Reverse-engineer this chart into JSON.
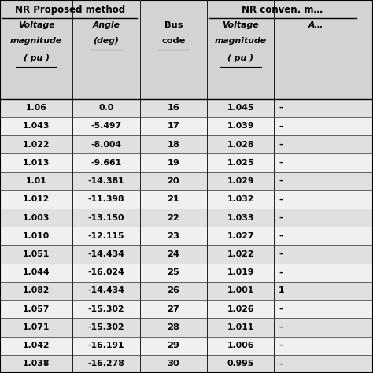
{
  "title_left": "NR Proposed method",
  "title_right": "NR conven. m…",
  "bus_codes": [
    16,
    17,
    18,
    19,
    20,
    21,
    22,
    23,
    24,
    25,
    26,
    27,
    28,
    29,
    30
  ],
  "nr_voltage": [
    "1.06",
    "1.043",
    "1.022",
    "1.013",
    "1.01",
    "1.012",
    "1.003",
    "1.010",
    "1.051",
    "1.044",
    "1.082",
    "1.057",
    "1.071",
    "1.042",
    "1.038"
  ],
  "nr_angle": [
    "0.0",
    "-5.497",
    "-8.004",
    "-9.661",
    "-14.381",
    "-11.398",
    "-13.150",
    "-12.115",
    "-14.434",
    "-16.024",
    "-14.434",
    "-15.302",
    "-15.302",
    "-16.191",
    "-16.278"
  ],
  "conv_voltage": [
    "1.045",
    "1.039",
    "1.028",
    "1.025",
    "1.029",
    "1.032",
    "1.033",
    "1.027",
    "1.022",
    "1.019",
    "1.001",
    "1.026",
    "1.011",
    "1.006",
    "0.995"
  ],
  "conv_angle_partial": [
    "-",
    "-",
    "-",
    "-",
    "-",
    "-",
    "-",
    "-",
    "-",
    "-",
    "1",
    "-",
    "-",
    "-",
    "-"
  ],
  "bg_color_header": "#d3d3d3",
  "bg_color_rows_even": "#e0e0e0",
  "bg_color_rows_odd": "#f0f0f0",
  "fig_width": 4.74,
  "fig_height": 4.74
}
